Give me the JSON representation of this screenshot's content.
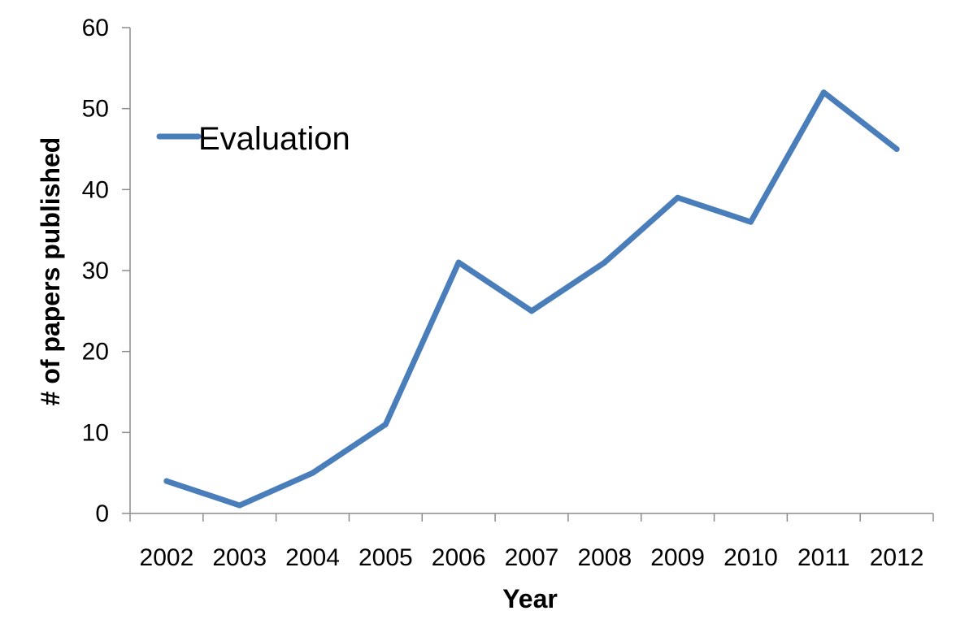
{
  "chart_data": {
    "type": "line",
    "xlabel": "Year",
    "ylabel": "# of papers published",
    "categories": [
      "2002",
      "2003",
      "2004",
      "2005",
      "2006",
      "2007",
      "2008",
      "2009",
      "2010",
      "2011",
      "2012"
    ],
    "series": [
      {
        "name": "Evaluation",
        "values": [
          4,
          1,
          5,
          11,
          31,
          25,
          31,
          39,
          36,
          52,
          45
        ],
        "color": "#4a7ebb"
      }
    ],
    "ylim": [
      0,
      60
    ],
    "yticks": [
      "0",
      "10",
      "20",
      "30",
      "40",
      "50",
      "60"
    ],
    "grid": false,
    "legend_position": "top-left"
  }
}
